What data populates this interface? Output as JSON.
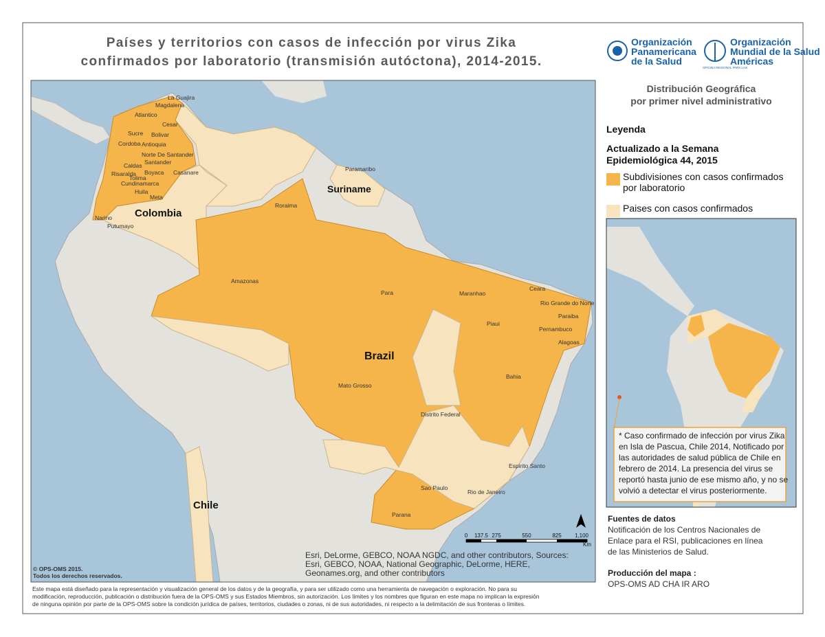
{
  "header": {
    "title_lines": [
      "Países y territorios con casos de infección por virus Zika",
      "confirmados por laboratorio (transmisión autóctona), 2014-2015."
    ],
    "logos": [
      {
        "name_lines": [
          "Organización",
          "Panamericana",
          "de la Salud"
        ]
      },
      {
        "name_lines": [
          "Organización",
          "Mundial de la Salud",
          "Américas"
        ],
        "small": "OFICINA REGIONAL PARA LAS"
      }
    ]
  },
  "panel": {
    "subtitle_lines": [
      "Distribución Geográfica",
      "por primer nivel administrativo"
    ],
    "legend_title": "Leyenda",
    "updated_lines": [
      "Actualizado a la Semana",
      "Epidemiológica 44, 2015"
    ],
    "legend_items": [
      {
        "label_lines": [
          "Subdivisiones con casos confirmados",
          "por laboratorio"
        ],
        "color": "#f5b54a"
      },
      {
        "label_lines": [
          "Paises con casos confirmados"
        ],
        "color": "#f7e4be"
      }
    ]
  },
  "inset_note_lines": [
    "* Caso confirmado de infección por virus Zika",
    "en Isla de Pascua, Chile 2014, Notificado por",
    "las autoridades de salud pública de Chile en",
    "febrero de 2014. La presencia del virus se",
    "reportó hasta junio de ese mismo año, y no se",
    "volvió a detectar el virus posteriormente."
  ],
  "sources": {
    "title": "Fuentes de datos",
    "lines": [
      "Notificación de los Centros Nacionales de",
      "Enlace para el RSI, publicaciones en línea",
      "de las Ministerios de Salud."
    ]
  },
  "production": {
    "title": "Producción del mapa :",
    "text": "OPS-OMS AD CHA IR ARO"
  },
  "map": {
    "countries": [
      "Colombia",
      "Suriname",
      "Brazil",
      "Chile"
    ],
    "regions": [
      "La Guajira",
      "Magdalena",
      "Atlantico",
      "Cesar",
      "Sucre",
      "Bolivar",
      "Cordoba",
      "Antioquia",
      "Norte De Santander",
      "Santander",
      "Boyaca",
      "Casanare",
      "Caldas",
      "Risaralda",
      "Tolima",
      "Cundinamarca",
      "Huila",
      "Meta",
      "Narino",
      "Putumayo",
      "Roraima",
      "Paramaribo",
      "Amazonas",
      "Para",
      "Maranhao",
      "Ceara",
      "Rio Grande do Norte",
      "Paraiba",
      "Piaui",
      "Pernambuco",
      "Alagoas",
      "Bahia",
      "Mato Grosso",
      "Distrito Federal",
      "Espirito Santo",
      "Sao Paulo",
      "Rio de Janeiro",
      "Parana"
    ],
    "scale": {
      "ticks": [
        "0",
        "137.5",
        "275",
        "550",
        "825",
        "1,100"
      ],
      "unit": "Km"
    },
    "attribution_lines": [
      "Esri, DeLorme, GEBCO, NOAA NGDC, and other contributors, Sources:",
      "Esri, GEBCO, NOAA, National Geographic, DeLorme, HERE,",
      "Geonames.org, and other contributors"
    ],
    "copyright_lines": [
      "© OPS-OMS 2015.",
      "Todos los derechos reservados."
    ]
  },
  "disclaimer_lines": [
    "Este mapa está diseñado para la representación y visualización general de los datos y de la geografía, y para ser utilizado como una herramienta de navegación o exploración. No para su",
    "modificación, reproducción, publicación o distribución fuera de la OPS-OMS y sus Estados Miembros, sin autorización. Los límites y los nombres que figuran en este mapa no implican la expresión",
    "de ninguna opinión por parte de la OPS-OMS sobre la condición jurídica de países, territorios, ciudades o zonas, ni de sus autoridades, ni respecto a la delimitación de sus fronteras o límites."
  ]
}
